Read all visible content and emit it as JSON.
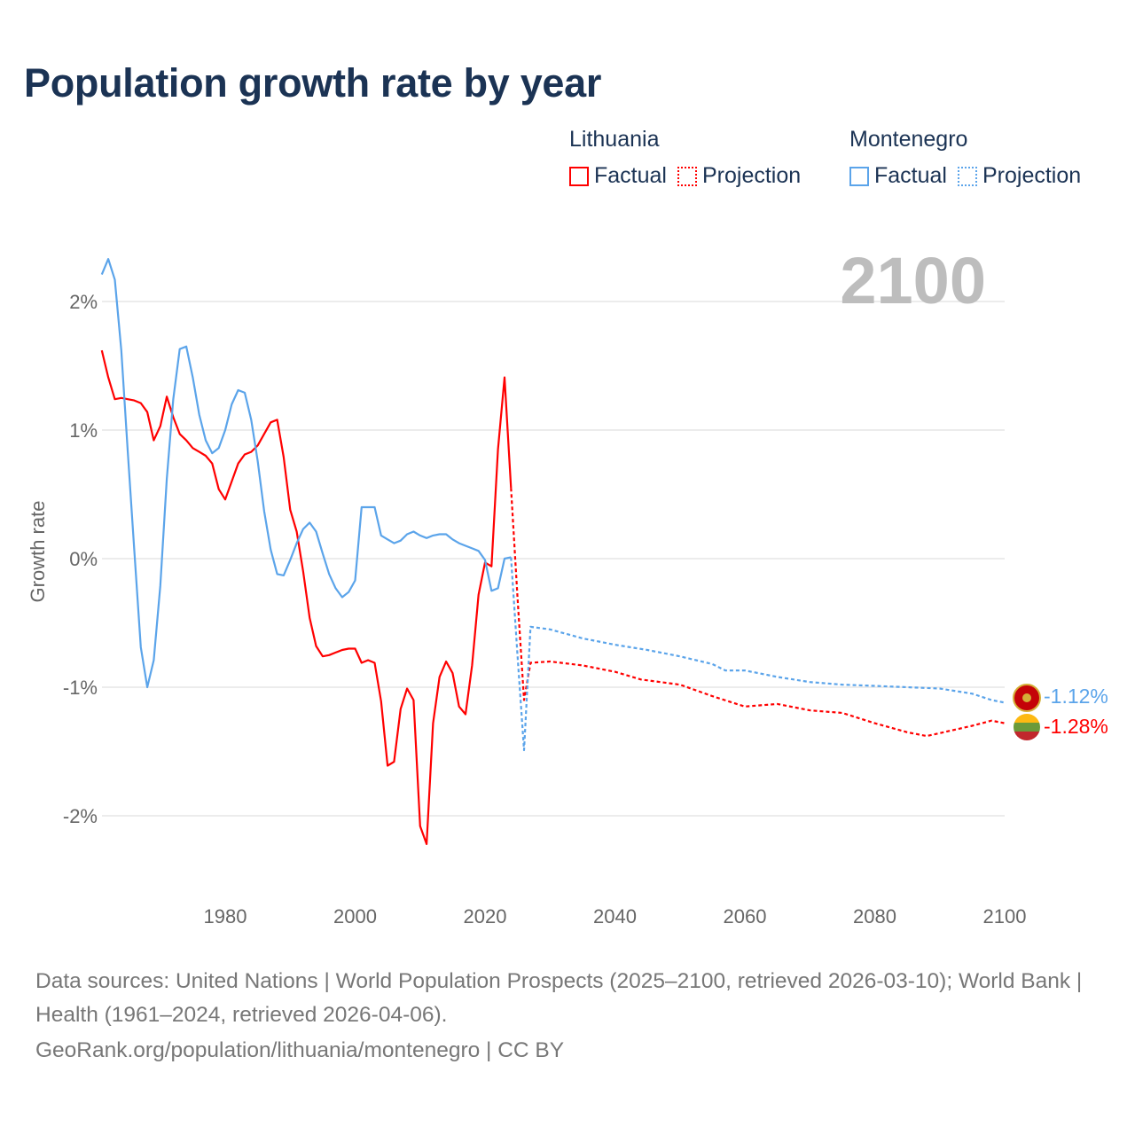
{
  "title": "Population growth rate by year",
  "legend": {
    "groups": [
      {
        "country": "Lithuania",
        "factual": "Factual",
        "projection": "Projection",
        "color": "#ff0000"
      },
      {
        "country": "Montenegro",
        "factual": "Factual",
        "projection": "Projection",
        "color": "#5ba4ea"
      }
    ]
  },
  "year_watermark": "2100",
  "end_labels": {
    "montenegro": "-1.12%",
    "lithuania": "-1.28%"
  },
  "footer": {
    "sources": "Data sources: United Nations | World Population Prospects (2025–2100, retrieved 2026-03-10); World Bank | Health (1961–2024, retrieved 2026-04-06).",
    "credit": "GeoRank.org/population/lithuania/montenegro | CC BY"
  },
  "chart_data": {
    "type": "line",
    "title": "Population growth rate by year",
    "xlabel": "",
    "ylabel": "Growth rate",
    "xlim": [
      1961,
      2100
    ],
    "ylim": [
      -2.6,
      2.35
    ],
    "xticks": [
      1980,
      2000,
      2020,
      2040,
      2060,
      2080,
      2100
    ],
    "xtick_labels": [
      "1980",
      "2000",
      "2020",
      "2040",
      "2060",
      "2080",
      "2100"
    ],
    "yticks": [
      2,
      1,
      0,
      -1,
      -2
    ],
    "ytick_labels": [
      "2%",
      "1%",
      "0%",
      "-1%",
      "-2%"
    ],
    "grid": true,
    "legend_position": "top-right",
    "series": [
      {
        "name": "Lithuania Factual",
        "color": "#ff0000",
        "style": "solid",
        "x": [
          1961,
          1962,
          1963,
          1964,
          1965,
          1966,
          1967,
          1968,
          1969,
          1970,
          1971,
          1972,
          1973,
          1974,
          1975,
          1976,
          1977,
          1978,
          1979,
          1980,
          1981,
          1982,
          1983,
          1984,
          1985,
          1986,
          1987,
          1988,
          1989,
          1990,
          1991,
          1992,
          1993,
          1994,
          1995,
          1996,
          1997,
          1998,
          1999,
          2000,
          2001,
          2002,
          2003,
          2004,
          2005,
          2006,
          2007,
          2008,
          2009,
          2010,
          2011,
          2012,
          2013,
          2014,
          2015,
          2016,
          2017,
          2018,
          2019,
          2020,
          2021,
          2022,
          2023,
          2024
        ],
        "y": [
          1.62,
          1.41,
          1.24,
          1.25,
          1.24,
          1.23,
          1.21,
          1.14,
          0.92,
          1.03,
          1.26,
          1.1,
          0.97,
          0.92,
          0.86,
          0.83,
          0.8,
          0.74,
          0.54,
          0.46,
          0.6,
          0.74,
          0.81,
          0.83,
          0.88,
          0.97,
          1.06,
          1.08,
          0.79,
          0.38,
          0.21,
          -0.1,
          -0.46,
          -0.68,
          -0.76,
          -0.75,
          -0.73,
          -0.71,
          -0.7,
          -0.7,
          -0.81,
          -0.79,
          -0.81,
          -1.11,
          -1.61,
          -1.58,
          -1.17,
          -1.01,
          -1.1,
          -2.08,
          -2.22,
          -1.28,
          -0.92,
          -0.8,
          -0.89,
          -1.15,
          -1.21,
          -0.83,
          -0.28,
          -0.03,
          -0.06,
          0.85,
          1.41,
          0.55
        ]
      },
      {
        "name": "Lithuania Projection",
        "color": "#ff0000",
        "style": "dotted",
        "x": [
          2024,
          2025,
          2026,
          2027,
          2030,
          2035,
          2040,
          2044,
          2050,
          2055,
          2060,
          2065,
          2070,
          2075,
          2080,
          2085,
          2088,
          2095,
          2098,
          2100
        ],
        "y": [
          0.55,
          -0.3,
          -1.1,
          -0.81,
          -0.8,
          -0.83,
          -0.88,
          -0.94,
          -0.98,
          -1.07,
          -1.15,
          -1.13,
          -1.18,
          -1.2,
          -1.28,
          -1.35,
          -1.38,
          -1.3,
          -1.26,
          -1.28
        ]
      },
      {
        "name": "Montenegro Factual",
        "color": "#5ba4ea",
        "style": "solid",
        "x": [
          1961,
          1962,
          1963,
          1964,
          1965,
          1966,
          1967,
          1968,
          1969,
          1970,
          1971,
          1972,
          1973,
          1974,
          1975,
          1976,
          1977,
          1978,
          1979,
          1980,
          1981,
          1982,
          1983,
          1984,
          1985,
          1986,
          1987,
          1988,
          1989,
          1990,
          1991,
          1992,
          1993,
          1994,
          1995,
          1996,
          1997,
          1998,
          1999,
          2000,
          2001,
          2002,
          2003,
          2004,
          2005,
          2006,
          2007,
          2008,
          2009,
          2010,
          2011,
          2012,
          2013,
          2014,
          2015,
          2016,
          2017,
          2018,
          2019,
          2020,
          2021,
          2022,
          2023,
          2024
        ],
        "y": [
          2.21,
          2.33,
          2.17,
          1.62,
          0.83,
          0.07,
          -0.69,
          -1.0,
          -0.79,
          -0.21,
          0.62,
          1.24,
          1.63,
          1.65,
          1.41,
          1.12,
          0.92,
          0.82,
          0.86,
          1.0,
          1.2,
          1.31,
          1.29,
          1.08,
          0.76,
          0.37,
          0.07,
          -0.12,
          -0.13,
          -0.01,
          0.12,
          0.23,
          0.28,
          0.21,
          0.04,
          -0.12,
          -0.23,
          -0.3,
          -0.26,
          -0.17,
          0.4,
          0.4,
          0.4,
          0.18,
          0.15,
          0.12,
          0.14,
          0.19,
          0.21,
          0.18,
          0.16,
          0.18,
          0.19,
          0.19,
          0.15,
          0.12,
          0.1,
          0.08,
          0.06,
          -0.01,
          -0.25,
          -0.23,
          0.0,
          0.01
        ]
      },
      {
        "name": "Montenegro Projection",
        "color": "#5ba4ea",
        "style": "dotted",
        "x": [
          2024,
          2025,
          2026,
          2027,
          2030,
          2035,
          2040,
          2045,
          2050,
          2055,
          2057,
          2060,
          2065,
          2070,
          2075,
          2080,
          2085,
          2090,
          2095,
          2098,
          2100
        ],
        "y": [
          0.01,
          -0.75,
          -1.49,
          -0.53,
          -0.55,
          -0.62,
          -0.67,
          -0.71,
          -0.76,
          -0.82,
          -0.87,
          -0.87,
          -0.92,
          -0.96,
          -0.98,
          -0.99,
          -1.0,
          -1.01,
          -1.05,
          -1.1,
          -1.12
        ]
      }
    ]
  }
}
